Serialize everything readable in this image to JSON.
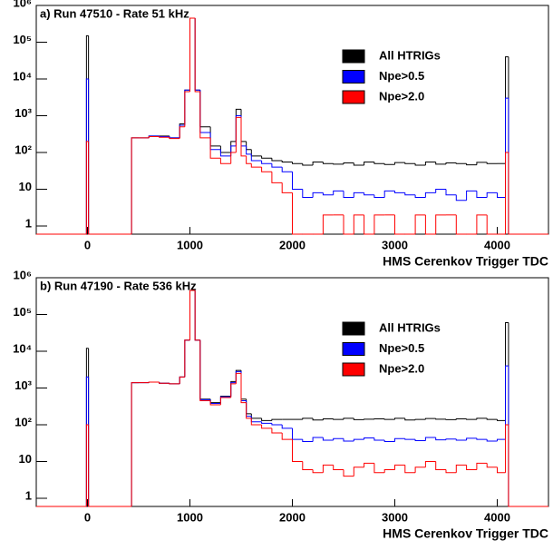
{
  "chart_data": [
    {
      "type": "histogram",
      "title": "a) Run 47510 - Rate 51 kHz",
      "x_label": "HMS Cerenkov Trigger TDC",
      "log_y": true,
      "xlim": [
        -500,
        4500
      ],
      "xticks": [
        0,
        1000,
        2000,
        3000,
        4000
      ],
      "ylim": [
        0.6,
        1000000
      ],
      "yticks": [
        1,
        10,
        {
          "value": 100,
          "label": "10²"
        },
        {
          "value": 1000,
          "label": "10³"
        },
        {
          "value": 10000,
          "label": "10⁴"
        },
        {
          "value": 100000,
          "label": "10⁵"
        },
        {
          "value": 1000000,
          "label": "10⁶"
        }
      ],
      "bins": [
        -500,
        -10,
        10,
        430,
        500,
        600,
        700,
        800,
        900,
        950,
        1000,
        1050,
        1100,
        1200,
        1300,
        1400,
        1450,
        1500,
        1550,
        1600,
        1700,
        1800,
        1900,
        2000,
        2100,
        2200,
        2300,
        2400,
        2500,
        2600,
        2700,
        2800,
        2900,
        3000,
        3100,
        3200,
        3300,
        3400,
        3500,
        3600,
        3700,
        3800,
        3900,
        4000,
        4080,
        4110,
        4500
      ],
      "series": [
        {
          "name": "All HTRIGs",
          "color": "#000000",
          "values": [
            0,
            150000,
            0,
            250,
            250,
            280,
            280,
            250,
            600,
            5000,
            450000,
            5000,
            500,
            150,
            100,
            200,
            1500,
            200,
            120,
            80,
            70,
            60,
            55,
            50,
            45,
            55,
            50,
            48,
            52,
            45,
            55,
            50,
            47,
            53,
            50,
            45,
            55,
            48,
            52,
            50,
            46,
            54,
            50,
            50,
            40000,
            0
          ]
        },
        {
          "name": "Npe>0.5",
          "color": "#0000ff",
          "values": [
            0,
            10000,
            0,
            250,
            250,
            280,
            270,
            250,
            550,
            5000,
            450000,
            5000,
            350,
            120,
            80,
            150,
            1000,
            150,
            90,
            60,
            50,
            40,
            30,
            10,
            6,
            8,
            7,
            9,
            6,
            8,
            7,
            6,
            9,
            8,
            7,
            6,
            8,
            10,
            7,
            5,
            9,
            6,
            8,
            6,
            3000,
            0
          ]
        },
        {
          "name": "Npe>2.0",
          "color": "#ff0000",
          "values": [
            0,
            200,
            0,
            250,
            250,
            270,
            260,
            240,
            500,
            4500,
            450000,
            4500,
            250,
            70,
            50,
            100,
            900,
            80,
            50,
            40,
            30,
            15,
            8,
            0,
            0,
            0,
            2,
            2,
            0,
            2,
            0,
            2,
            2,
            0,
            0,
            2,
            0,
            2,
            2,
            0,
            0,
            2,
            0,
            0,
            100,
            0
          ]
        }
      ]
    },
    {
      "type": "histogram",
      "title": "b) Run 47190 - Rate 536 kHz",
      "x_label": "HMS Cerenkov Trigger TDC",
      "log_y": true,
      "xlim": [
        -500,
        4500
      ],
      "xticks": [
        0,
        1000,
        2000,
        3000,
        4000
      ],
      "ylim": [
        0.6,
        1000000
      ],
      "yticks": [
        1,
        10,
        {
          "value": 100,
          "label": "10²"
        },
        {
          "value": 1000,
          "label": "10³"
        },
        {
          "value": 10000,
          "label": "10⁴"
        },
        {
          "value": 100000,
          "label": "10⁵"
        },
        {
          "value": 1000000,
          "label": "10⁶"
        }
      ],
      "bins": [
        -500,
        -10,
        10,
        430,
        500,
        600,
        700,
        800,
        900,
        950,
        1000,
        1050,
        1100,
        1200,
        1300,
        1400,
        1450,
        1500,
        1550,
        1600,
        1700,
        1800,
        1900,
        2000,
        2100,
        2200,
        2300,
        2400,
        2500,
        2600,
        2700,
        2800,
        2900,
        3000,
        3100,
        3200,
        3300,
        3400,
        3500,
        3600,
        3700,
        3800,
        3900,
        4000,
        4080,
        4110,
        4500
      ],
      "series": [
        {
          "name": "All HTRIGs",
          "color": "#000000",
          "values": [
            0,
            12000,
            0,
            1400,
            1400,
            1450,
            1350,
            1300,
            2000,
            20000,
            450000,
            20000,
            500,
            400,
            600,
            1500,
            3000,
            500,
            200,
            150,
            130,
            140,
            140,
            140,
            150,
            135,
            145,
            140,
            150,
            138,
            142,
            145,
            140,
            150,
            135,
            140,
            148,
            142,
            138,
            145,
            140,
            150,
            140,
            130,
            60000,
            0
          ]
        },
        {
          "name": "Npe>0.5",
          "color": "#0000ff",
          "values": [
            0,
            2000,
            0,
            1400,
            1400,
            1450,
            1350,
            1300,
            2000,
            20000,
            450000,
            20000,
            480,
            380,
            580,
            1400,
            2800,
            450,
            170,
            120,
            110,
            100,
            80,
            40,
            35,
            45,
            38,
            42,
            36,
            40,
            44,
            38,
            35,
            42,
            40,
            37,
            45,
            39,
            41,
            38,
            43,
            40,
            36,
            40,
            4000,
            0
          ]
        },
        {
          "name": "Npe>2.0",
          "color": "#ff0000",
          "values": [
            0,
            100,
            0,
            1400,
            1400,
            1450,
            1350,
            1300,
            2000,
            20000,
            450000,
            20000,
            450,
            350,
            550,
            1300,
            2500,
            400,
            150,
            100,
            80,
            60,
            40,
            10,
            6,
            5,
            8,
            6,
            4,
            7,
            9,
            5,
            6,
            8,
            5,
            7,
            10,
            6,
            5,
            8,
            6,
            9,
            7,
            5,
            100,
            0
          ]
        }
      ]
    }
  ]
}
